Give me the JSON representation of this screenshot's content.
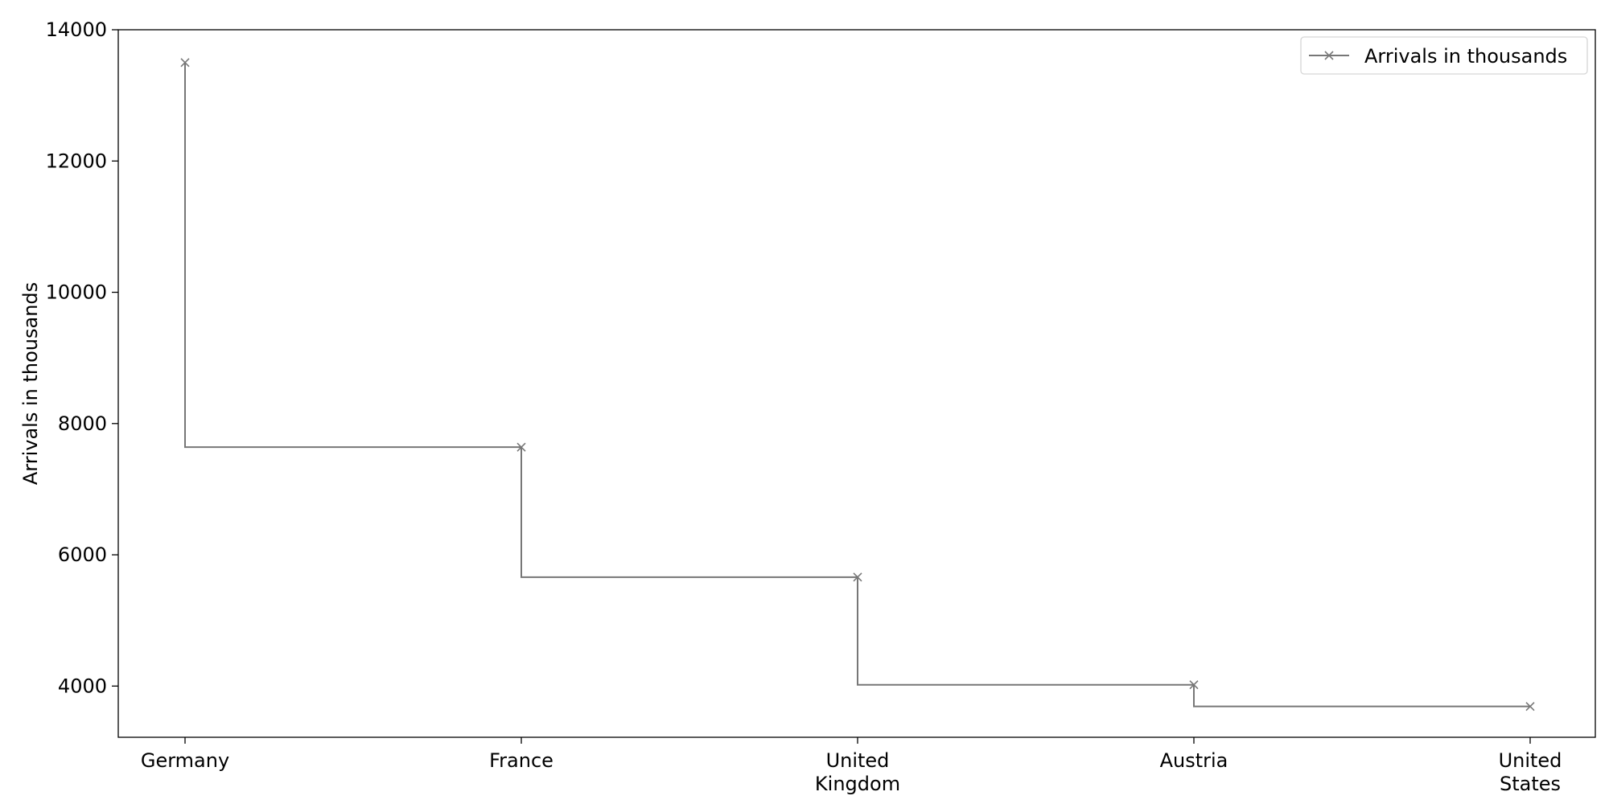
{
  "chart_data": {
    "type": "line",
    "drawstyle": "steps-pre",
    "categories": [
      [
        "Germany"
      ],
      [
        "France"
      ],
      [
        "United",
        "Kingdom"
      ],
      [
        "Austria"
      ],
      [
        "United",
        "States"
      ]
    ],
    "series": [
      {
        "name": "Arrivals in thousands",
        "values": [
          13500,
          7640,
          5660,
          4020,
          3690
        ],
        "color": "#777777",
        "marker": "x"
      }
    ],
    "title": "",
    "xlabel": "",
    "ylabel": "Arrivals in thousands",
    "ylim": [
      3220,
      14000
    ],
    "yticks": [
      4000,
      6000,
      8000,
      10000,
      12000,
      14000
    ],
    "ytick_labels": [
      "4000",
      "6000",
      "8000",
      "10000",
      "12000",
      "14000"
    ],
    "grid": false,
    "legend_position": "top-right"
  }
}
